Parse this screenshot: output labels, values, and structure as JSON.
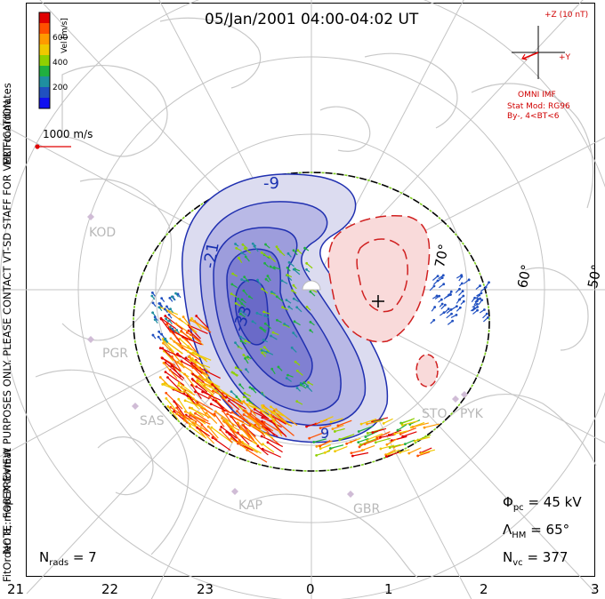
{
  "title": "05/Jan/2001 04:00-04:02 UT",
  "colorbar": {
    "ticks": [
      "600",
      "400",
      "200"
    ],
    "label": "Vel [m/s]",
    "colors": [
      "#e00000",
      "#ff5000",
      "#ff9a00",
      "#f0c800",
      "#8fd000",
      "#20b040",
      "#1f8fa0",
      "#2050c0",
      "#1010f0"
    ]
  },
  "coord_label": "MLT coordinates",
  "scale_vector": "1000 m/s",
  "imf": {
    "bz_label": "+Z (10 nT)",
    "by_label": "+Y",
    "source": "OMNI IMF",
    "model": "Stat Mod: RG96",
    "condition": "By-, 4<BT<6"
  },
  "stations": [
    "KOD",
    "PGR",
    "SAS",
    "KAP",
    "GBR",
    "STO",
    "PYK"
  ],
  "latitudes": [
    "70°",
    "60°",
    "50°"
  ],
  "contour_labels": [
    "-9",
    "-21",
    "-33",
    "9"
  ],
  "stats": {
    "phi_pc_label": "Φ",
    "phi_pc_sub": "pc",
    "phi_pc_value": "= 45 kV",
    "lambda_hm_label": "Λ",
    "lambda_hm_sub": "HM",
    "lambda_hm_value": "= 65°",
    "nvc_label": "N",
    "nvc_sub": "vc",
    "nvc_value": "= 377",
    "nrads_label": "N",
    "nrads_sub": "rads",
    "nrads_value": "= 7"
  },
  "x_ticks": [
    "21",
    "22",
    "23",
    "0",
    "1",
    "2",
    "3"
  ],
  "notes": {
    "line1": "NOTE: FOR PREVIEW PURPOSES ONLY. PLEASE CONTACT VT-SD STAFF FOR VERIFICATION.",
    "line2": "FitOrder: 8, mapEX format"
  }
}
